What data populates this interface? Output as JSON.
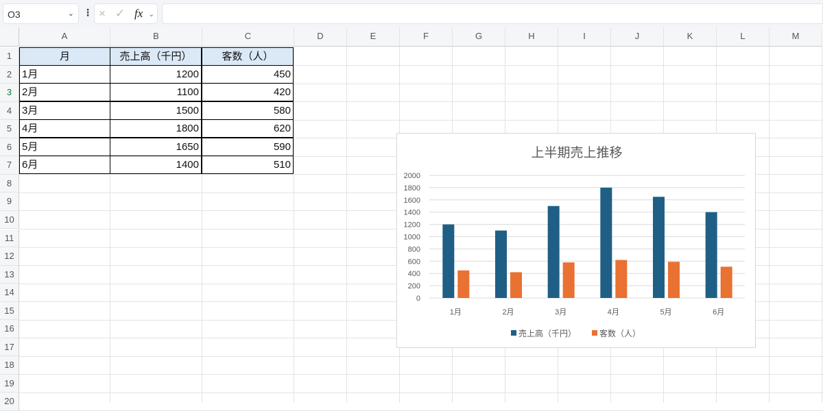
{
  "formula_bar": {
    "name_box": "O3",
    "cancel_icon": "×",
    "enter_icon": "✓",
    "fx_label": "fx",
    "formula": ""
  },
  "columns": [
    "A",
    "B",
    "C",
    "D",
    "E",
    "F",
    "G",
    "H",
    "I",
    "J",
    "K",
    "L",
    "M"
  ],
  "rows": [
    "1",
    "2",
    "3",
    "4",
    "5",
    "6",
    "7",
    "8",
    "9",
    "10",
    "11",
    "12",
    "13",
    "14",
    "15",
    "16",
    "17",
    "18",
    "19",
    "20"
  ],
  "table": {
    "headers": [
      "月",
      "売上高（千円）",
      "客数（人）"
    ],
    "data": [
      [
        "1月",
        "1200",
        "450"
      ],
      [
        "2月",
        "1100",
        "420"
      ],
      [
        "3月",
        "1500",
        "580"
      ],
      [
        "4月",
        "1800",
        "620"
      ],
      [
        "5月",
        "1650",
        "590"
      ],
      [
        "6月",
        "1400",
        "510"
      ]
    ]
  },
  "chart_data": {
    "type": "bar",
    "title": "上半期売上推移",
    "categories": [
      "1月",
      "2月",
      "3月",
      "4月",
      "5月",
      "6月"
    ],
    "series": [
      {
        "name": "売上高（千円）",
        "values": [
          1200,
          1100,
          1500,
          1800,
          1650,
          1400
        ],
        "color": "#1f5f86"
      },
      {
        "name": "客数（人）",
        "values": [
          450,
          420,
          580,
          620,
          590,
          510
        ],
        "color": "#e97132"
      }
    ],
    "ylim": [
      0,
      2000
    ],
    "yticks": [
      "0",
      "200",
      "400",
      "600",
      "800",
      "1000",
      "1200",
      "1400",
      "1600",
      "1800",
      "2000"
    ],
    "grid": true,
    "legend": "bottom"
  }
}
